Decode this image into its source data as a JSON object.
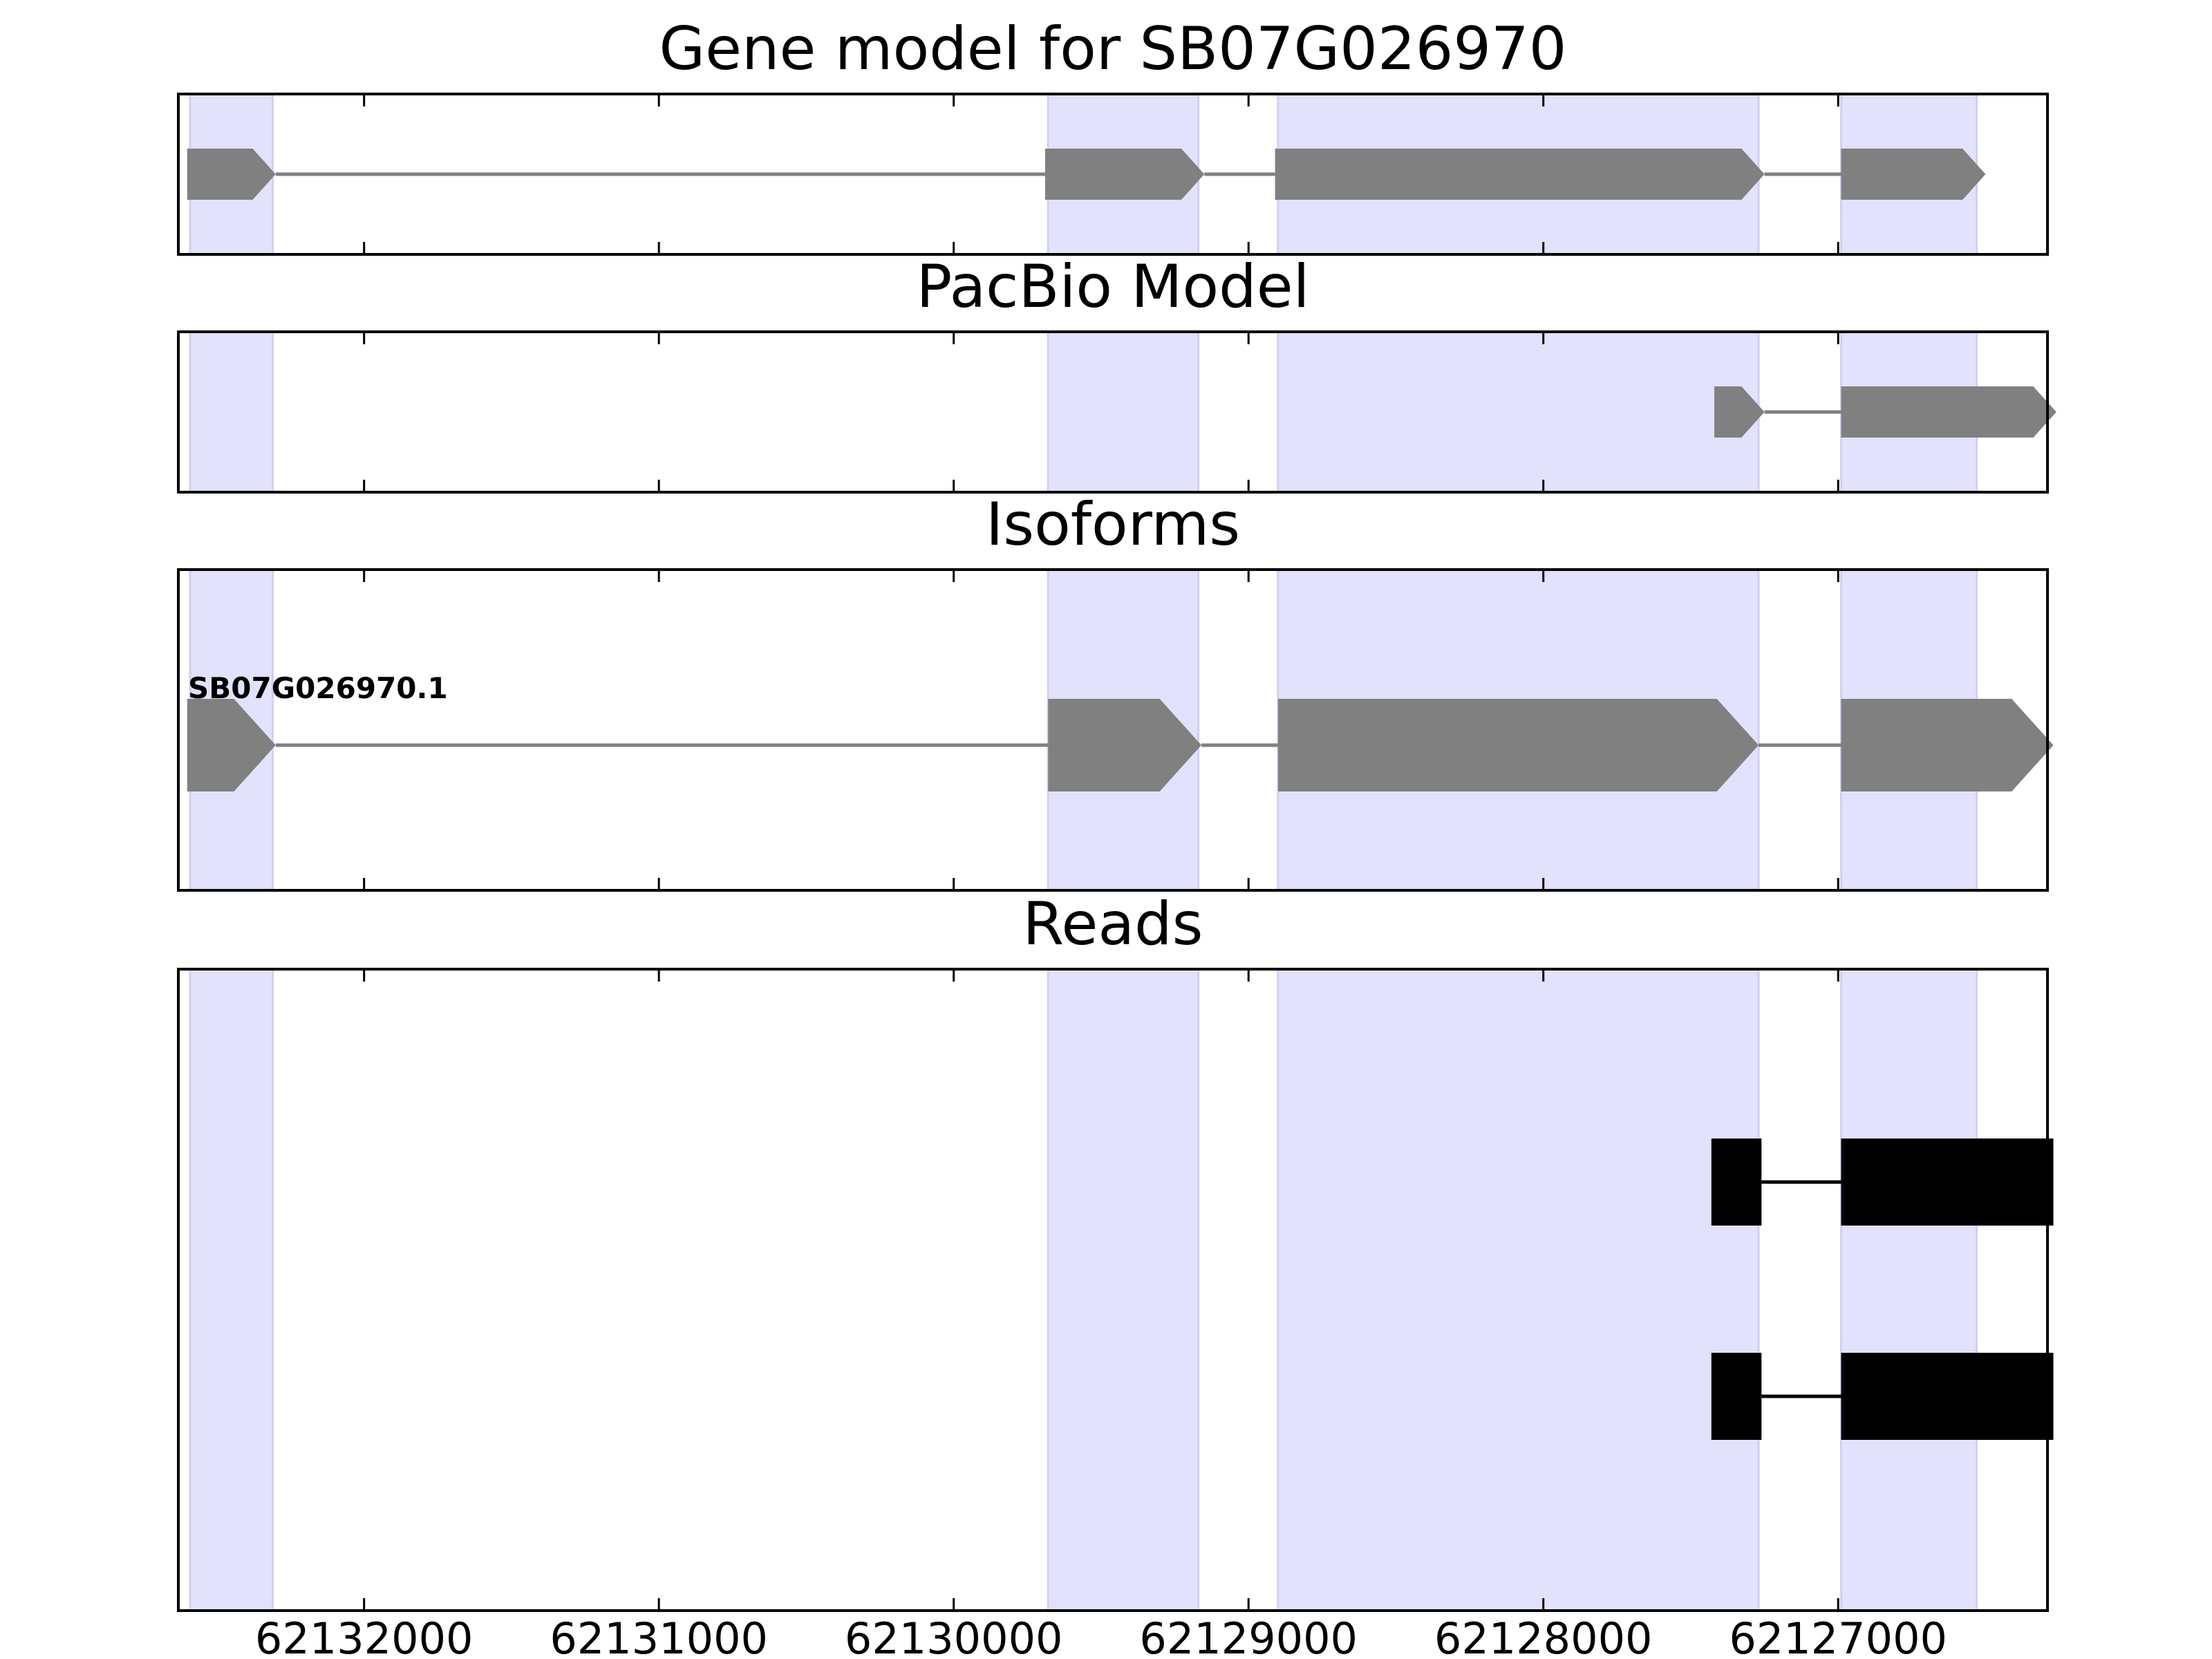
{
  "chart_data": {
    "type": "gene-model",
    "title": "Gene model for SB07G026970",
    "x_axis": {
      "direction": "descending",
      "xlim": [
        62132630,
        62126290
      ],
      "ticks": [
        62132000,
        62131000,
        62130000,
        62129000,
        62128000,
        62127000
      ],
      "tick_labels": [
        "62132000",
        "62131000",
        "62130000",
        "62129000",
        "62128000",
        "62127000"
      ]
    },
    "highlight_color": "#e2e2fc",
    "exon_color": "#808080",
    "read_color": "#000000",
    "exon_regions": [
      [
        62132590,
        62132310
      ],
      [
        62129680,
        62129170
      ],
      [
        62128900,
        62127270
      ],
      [
        62126990,
        62126530
      ]
    ],
    "panels": [
      {
        "title": "Gene model for SB07G026970",
        "tracks": [
          {
            "label": "",
            "exons": [
              [
                62132600,
                62132300
              ],
              [
                62129690,
                62129150
              ],
              [
                62128910,
                62127250
              ],
              [
                62126990,
                62126500
              ]
            ]
          }
        ]
      },
      {
        "title": "PacBio Model",
        "tracks": [
          {
            "label": "",
            "exons": [
              [
                62127420,
                62127250
              ],
              [
                62126990,
                62126260
              ]
            ]
          }
        ]
      },
      {
        "title": "Isoforms",
        "tracks": [
          {
            "label": "SB07G026970.1",
            "exons": [
              [
                62132600,
                62132300
              ],
              [
                62129680,
                62129160
              ],
              [
                62128900,
                62127270
              ],
              [
                62126990,
                62126270
              ]
            ]
          }
        ]
      },
      {
        "title": "Reads",
        "tracks": [
          {
            "label": "",
            "exons": [
              [
                62127430,
                62127260
              ],
              [
                62126990,
                62126270
              ]
            ]
          },
          {
            "label": "",
            "exons": [
              [
                62127430,
                62127260
              ],
              [
                62126990,
                62126270
              ]
            ]
          }
        ]
      }
    ]
  }
}
